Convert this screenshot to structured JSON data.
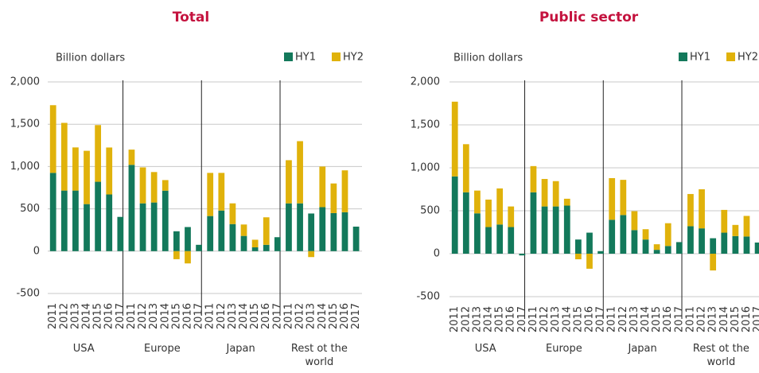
{
  "chart_data": [
    {
      "type": "bar",
      "stacked": true,
      "title": "Total",
      "y_label": "Billion dollars",
      "categories": [
        "2011",
        "2012",
        "2013",
        "2014",
        "2015",
        "2016",
        "2017",
        "2011",
        "2012",
        "2013",
        "2014",
        "2015",
        "2016",
        "2017",
        "2011",
        "2012",
        "2013",
        "2014",
        "2015",
        "2016",
        "2017",
        "2011",
        "2012",
        "2013",
        "2014",
        "2015",
        "2016",
        "2017"
      ],
      "groups": [
        "USA",
        "Europe",
        "Japan",
        "Rest ot the world"
      ],
      "series": [
        {
          "name": "HY1",
          "color": "#13795b",
          "values": [
            925,
            716,
            716,
            556,
            820,
            670,
            405,
            1020,
            565,
            575,
            715,
            235,
            285,
            75,
            415,
            480,
            320,
            180,
            45,
            75,
            165,
            565,
            565,
            445,
            520,
            450,
            460,
            290
          ]
        },
        {
          "name": "HY2",
          "color": "#e0b20b",
          "values": [
            800,
            800,
            510,
            630,
            670,
            555,
            0,
            180,
            425,
            360,
            125,
            -95,
            -145,
            0,
            510,
            445,
            245,
            135,
            90,
            325,
            0,
            510,
            735,
            -70,
            480,
            350,
            495,
            0
          ]
        }
      ],
      "ylim": [
        -500,
        2000
      ],
      "yticks": [
        {
          "value": 2000,
          "label": "2,000"
        },
        {
          "value": 1500,
          "label": "1,500"
        },
        {
          "value": 1000,
          "label": "1,000"
        },
        500,
        0,
        -500
      ],
      "grid": true
    },
    {
      "type": "bar",
      "stacked": true,
      "title": "Public sector",
      "y_label": "Billion dollars",
      "categories": [
        "2011",
        "2012",
        "2013",
        "2014",
        "2015",
        "2016",
        "2017",
        "2011",
        "2012",
        "2013",
        "2014",
        "2015",
        "2016",
        "2017",
        "2011",
        "2012",
        "2013",
        "2014",
        "2015",
        "2016",
        "2017",
        "2011",
        "2012",
        "2013",
        "2014",
        "2015",
        "2016",
        "2017"
      ],
      "groups": [
        "USA",
        "Europe",
        "Japan",
        "Rest ot the world"
      ],
      "series": [
        {
          "name": "HY1",
          "color": "#13795b",
          "values": [
            900,
            715,
            470,
            310,
            340,
            310,
            -20,
            715,
            550,
            550,
            560,
            165,
            245,
            30,
            395,
            450,
            275,
            165,
            45,
            90,
            135,
            320,
            295,
            180,
            245,
            205,
            200,
            130
          ]
        },
        {
          "name": "HY2",
          "color": "#e0b20b",
          "values": [
            870,
            560,
            265,
            320,
            420,
            240,
            0,
            305,
            320,
            295,
            80,
            -65,
            -175,
            0,
            485,
            410,
            220,
            120,
            65,
            265,
            0,
            375,
            455,
            -195,
            265,
            130,
            240,
            0
          ]
        }
      ],
      "ylim": [
        -500,
        2000
      ],
      "yticks": [
        {
          "value": 2000,
          "label": "2,000"
        },
        {
          "value": 1500,
          "label": "1,500"
        },
        {
          "value": 1000,
          "label": "1,000"
        },
        500,
        0,
        -500
      ],
      "grid": true
    }
  ]
}
